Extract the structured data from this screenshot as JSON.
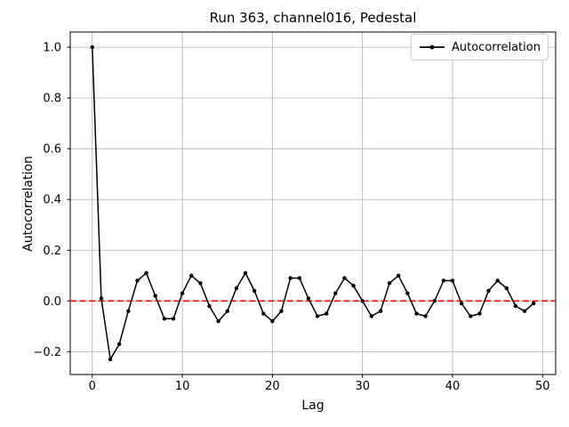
{
  "chart_data": {
    "type": "line",
    "title": "Run 363, channel016, Pedestal",
    "xlabel": "Lag",
    "ylabel": "Autocorrelation",
    "legend": {
      "entries": [
        "Autocorrelation"
      ],
      "position": "upper right"
    },
    "grid": true,
    "xlim": [
      -2.45,
      51.45
    ],
    "ylim": [
      -0.29,
      1.06
    ],
    "xticks": {
      "values": [
        0,
        10,
        20,
        30,
        40,
        50
      ],
      "labels": [
        "0",
        "10",
        "20",
        "30",
        "40",
        "50"
      ]
    },
    "yticks": {
      "values": [
        1.0,
        0.8,
        0.6,
        0.4,
        0.2,
        0.0,
        -0.2
      ],
      "labels": [
        "1.0",
        "0.8",
        "0.6",
        "0.4",
        "0.2",
        "0.0",
        "−0.2"
      ]
    },
    "series": [
      {
        "name": "Autocorrelation",
        "color": "#000000",
        "marker": "circle",
        "x": [
          0,
          1,
          2,
          3,
          4,
          5,
          6,
          7,
          8,
          9,
          10,
          11,
          12,
          13,
          14,
          15,
          16,
          17,
          18,
          19,
          20,
          21,
          22,
          23,
          24,
          25,
          26,
          27,
          28,
          29,
          30,
          31,
          32,
          33,
          34,
          35,
          36,
          37,
          38,
          39,
          40,
          41,
          42,
          43,
          44,
          45,
          46,
          47,
          48,
          49
        ],
        "values": [
          1.0,
          0.01,
          -0.23,
          -0.17,
          -0.04,
          0.08,
          0.11,
          0.02,
          -0.07,
          -0.07,
          0.03,
          0.1,
          0.07,
          -0.02,
          -0.08,
          -0.04,
          0.05,
          0.11,
          0.04,
          -0.05,
          -0.08,
          -0.04,
          0.09,
          0.09,
          0.01,
          -0.06,
          -0.05,
          0.03,
          0.09,
          0.06,
          0.0,
          -0.06,
          -0.04,
          0.07,
          0.1,
          0.03,
          -0.05,
          -0.06,
          0.0,
          0.08,
          0.08,
          -0.01,
          -0.06,
          -0.05,
          0.04,
          0.08,
          0.05,
          -0.02,
          -0.04,
          -0.01
        ]
      }
    ],
    "reference_line": {
      "y": 0.0,
      "color": "#ff0000",
      "style": "dashed"
    },
    "colors": {
      "grid": "#b0b0b0",
      "spine": "#000000",
      "tick_label": "#000000",
      "legend_border": "#cccccc",
      "background": "#ffffff"
    }
  }
}
